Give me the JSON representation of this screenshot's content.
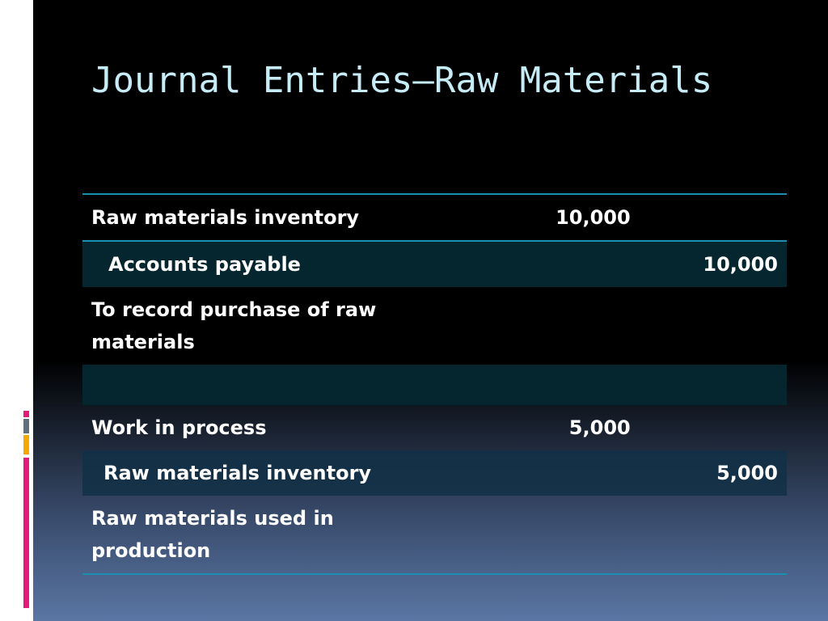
{
  "slide": {
    "title": "Journal Entries—Raw Materials"
  },
  "accent_colors": {
    "rule": "#1b8fb0",
    "title": "#c6ecf7",
    "strip_gray": "#5f6f80",
    "strip_amber": "#f5a800",
    "strip_pink": "#e5197a"
  },
  "entries": [
    {
      "account": "Raw materials inventory",
      "debit": "10,000",
      "credit": ""
    },
    {
      "account": "Accounts payable",
      "debit": "",
      "credit": "10,000"
    },
    {
      "account": "To record purchase of raw materials",
      "debit": "",
      "credit": ""
    },
    {
      "account": "",
      "debit": "",
      "credit": ""
    },
    {
      "account": "Work in process",
      "debit": "5,000",
      "credit": ""
    },
    {
      "account": "Raw materials inventory",
      "debit": "",
      "credit": "5,000"
    },
    {
      "account": "Raw materials used in production",
      "debit": "",
      "credit": ""
    }
  ]
}
